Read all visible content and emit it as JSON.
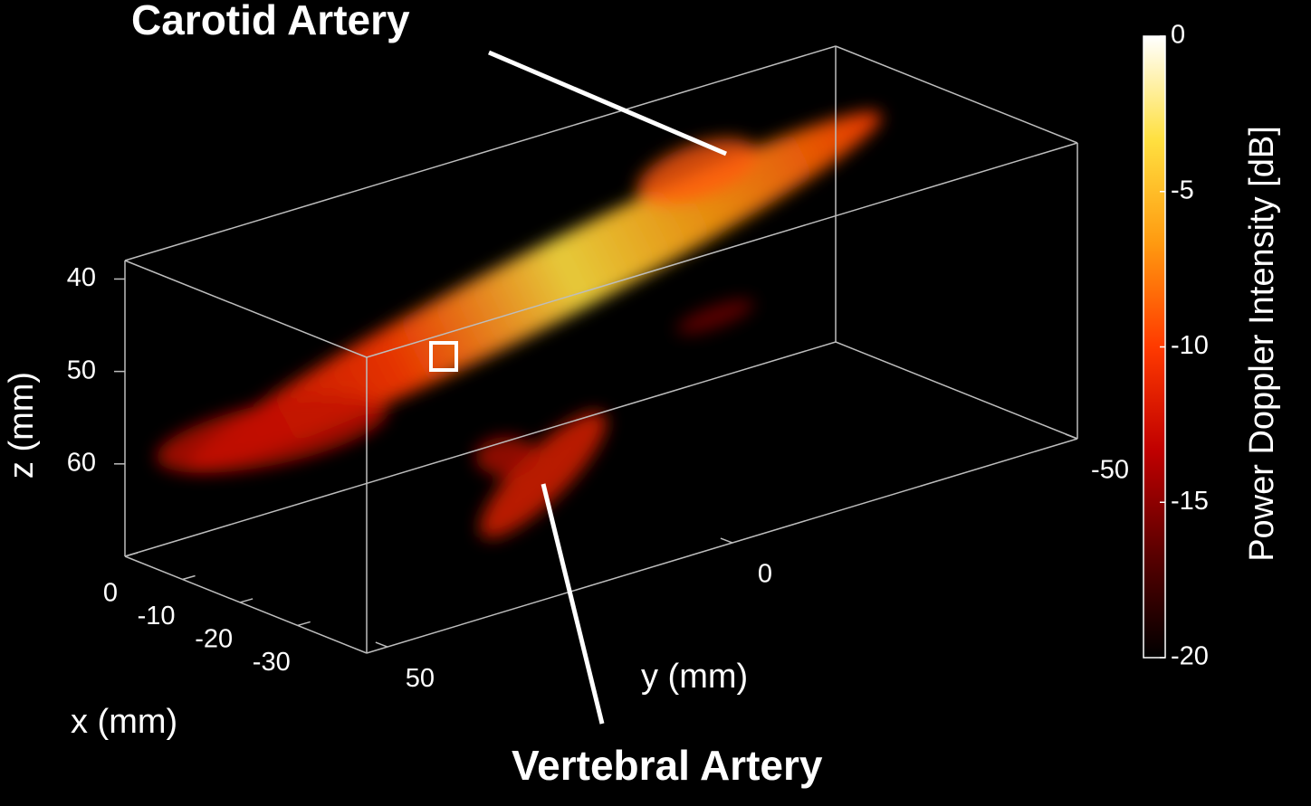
{
  "chart_data": {
    "type": "volume3d",
    "annotations": [
      "Carotid Artery",
      "Vertebral Artery"
    ],
    "xlabel": "x (mm)",
    "ylabel": "y (mm)",
    "zlabel": "z (mm)",
    "xlim": [
      0,
      -42
    ],
    "xticks": [
      0,
      -10,
      -20,
      -30
    ],
    "ylim": [
      53,
      -50
    ],
    "yticks": [
      50,
      0,
      -50
    ],
    "zlim": [
      38,
      70
    ],
    "zticks": [
      40,
      50,
      60
    ],
    "colorbar_label": "Power Doppler Intensity [dB]",
    "clim": [
      -20,
      0
    ],
    "cticks": [
      0,
      -5,
      -10,
      -15,
      -20
    ],
    "colormap": [
      "#000000",
      "#5a0000",
      "#c00000",
      "#ff3a00",
      "#ff9a10",
      "#ffe040",
      "#ffffff"
    ],
    "box_color": "#bdbdbd"
  }
}
